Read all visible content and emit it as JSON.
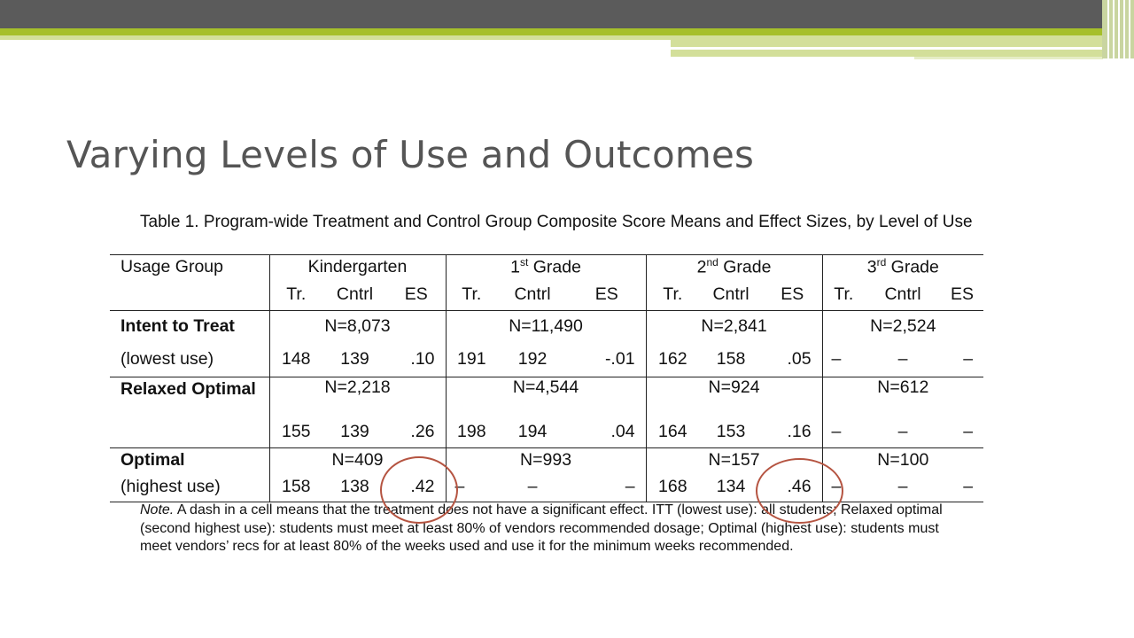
{
  "slide": {
    "title": "Varying Levels of Use and Outcomes"
  },
  "table": {
    "caption": "Table 1. Program-wide Treatment and Control Group Composite Score Means and Effect Sizes, by Level of Use",
    "header": {
      "usage_group": "Usage Group",
      "grades": [
        {
          "label": "Kindergarten",
          "sup": ""
        },
        {
          "label": " Grade",
          "num": "1",
          "sup": "st"
        },
        {
          "label": " Grade",
          "num": "2",
          "sup": "nd"
        },
        {
          "label": " Grade",
          "num": "3",
          "sup": "rd"
        }
      ],
      "subcols": [
        "Tr.",
        "Cntrl",
        "ES"
      ]
    },
    "rows": [
      {
        "label_top": "Intent to Treat",
        "label_bottom": "(lowest use)",
        "n": [
          "N=8,073",
          "N=11,490",
          "N=2,841",
          "N=2,524"
        ],
        "values": [
          [
            "148",
            "139",
            ".10"
          ],
          [
            "191",
            "192",
            "-.01"
          ],
          [
            "162",
            "158",
            ".05"
          ],
          [
            "–",
            "–",
            "–"
          ]
        ]
      },
      {
        "label_top": "Relaxed Optimal",
        "label_bottom": "",
        "n": [
          "N=2,218",
          "N=4,544",
          "N=924",
          "N=612"
        ],
        "values": [
          [
            "155",
            "139",
            ".26"
          ],
          [
            "198",
            "194",
            ".04"
          ],
          [
            "164",
            "153",
            ".16"
          ],
          [
            "–",
            "–",
            "–"
          ]
        ]
      },
      {
        "label_top": "Optimal",
        "label_bottom": "(highest use)",
        "n": [
          "N=409",
          "N=993",
          "N=157",
          "N=100"
        ],
        "values": [
          [
            "158",
            "138",
            ".42"
          ],
          [
            "–",
            "–",
            "–"
          ],
          [
            "168",
            "134",
            ".46"
          ],
          [
            "–",
            "–",
            "–"
          ]
        ]
      }
    ],
    "note_label": "Note.",
    "note_text": " A dash in a cell means that the treatment does not have a significant effect. ITT (lowest use): all students; Relaxed optimal (second highest use): students must meet at least 80% of vendors recommended dosage; Optimal (highest use): students must meet vendors’ recs for at least 80% of the weeks used and use it for the minimum weeks recommended."
  },
  "highlights": [
    {
      "row": "Optimal",
      "grade": "Kindergarten",
      "value": ".42"
    },
    {
      "row": "Optimal",
      "grade": "2nd Grade",
      "value": ".46"
    }
  ],
  "colors": {
    "header_gray": "#5b5b5b",
    "header_green": "#a6bf2b",
    "header_pale_green": "#d3df9a",
    "title_text": "#555555",
    "circle": "#b55441"
  }
}
